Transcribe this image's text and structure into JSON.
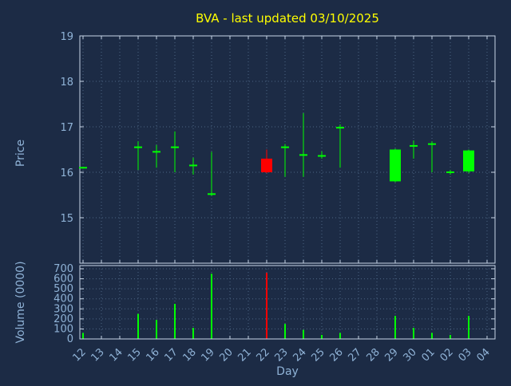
{
  "colors": {
    "background": "#1c2b45",
    "title": "#ffff00",
    "axis": "#8fb2d6",
    "grid": "#4d6584",
    "border": "#c7d6e8",
    "up": "#00ff00",
    "down": "#ff0000"
  },
  "chart_data": [
    {
      "type": "candlestick",
      "title": "BVA - last updated 03/10/2025",
      "ylabel": "Price",
      "ylim": [
        14,
        19
      ],
      "yticks": [
        15,
        16,
        17,
        18,
        19
      ],
      "categories": [
        "12",
        "13",
        "14",
        "15",
        "16",
        "17",
        "18",
        "19",
        "20",
        "21",
        "22",
        "23",
        "24",
        "25",
        "26",
        "27",
        "28",
        "29",
        "30",
        "01",
        "02",
        "03",
        "04"
      ],
      "candles": [
        {
          "day": "12",
          "open": 16.1,
          "high": 16.12,
          "low": 16.08,
          "close": 16.1,
          "color": "up"
        },
        {
          "day": "15",
          "open": 16.55,
          "high": 16.68,
          "low": 16.05,
          "close": 16.57,
          "color": "up"
        },
        {
          "day": "16",
          "open": 16.45,
          "high": 16.6,
          "low": 16.1,
          "close": 16.47,
          "color": "up"
        },
        {
          "day": "17",
          "open": 16.55,
          "high": 16.9,
          "low": 16.0,
          "close": 16.57,
          "color": "up"
        },
        {
          "day": "18",
          "open": 16.15,
          "high": 16.32,
          "low": 15.95,
          "close": 16.17,
          "color": "up"
        },
        {
          "day": "19",
          "open": 15.52,
          "high": 16.45,
          "low": 15.48,
          "close": 15.55,
          "color": "up"
        },
        {
          "day": "22",
          "open": 16.3,
          "high": 16.5,
          "low": 15.98,
          "close": 16.0,
          "color": "down"
        },
        {
          "day": "23",
          "open": 16.55,
          "high": 16.62,
          "low": 15.9,
          "close": 16.55,
          "color": "up"
        },
        {
          "day": "24",
          "open": 16.38,
          "high": 17.3,
          "low": 15.9,
          "close": 16.42,
          "color": "up"
        },
        {
          "day": "25",
          "open": 16.36,
          "high": 16.46,
          "low": 16.3,
          "close": 16.4,
          "color": "up"
        },
        {
          "day": "26",
          "open": 16.98,
          "high": 17.05,
          "low": 16.1,
          "close": 17.0,
          "color": "up"
        },
        {
          "day": "29",
          "open": 15.8,
          "high": 16.52,
          "low": 15.78,
          "close": 16.5,
          "color": "up"
        },
        {
          "day": "30",
          "open": 16.58,
          "high": 16.7,
          "low": 16.3,
          "close": 16.6,
          "color": "up"
        },
        {
          "day": "01",
          "open": 16.62,
          "high": 16.68,
          "low": 16.0,
          "close": 16.65,
          "color": "up"
        },
        {
          "day": "02",
          "open": 16.0,
          "high": 16.05,
          "low": 15.95,
          "close": 16.02,
          "color": "up"
        },
        {
          "day": "03",
          "open": 16.02,
          "high": 16.5,
          "low": 15.98,
          "close": 16.48,
          "color": "up"
        }
      ]
    },
    {
      "type": "bar",
      "ylabel": "Volume (0000)",
      "xlabel": "Day",
      "ylim": [
        0,
        700
      ],
      "yticks": [
        0,
        100,
        200,
        300,
        400,
        500,
        600,
        700
      ],
      "categories": [
        "12",
        "13",
        "14",
        "15",
        "16",
        "17",
        "18",
        "19",
        "20",
        "21",
        "22",
        "23",
        "24",
        "25",
        "26",
        "27",
        "28",
        "29",
        "30",
        "01",
        "02",
        "03",
        "04"
      ],
      "values": [
        {
          "day": "12",
          "value": 60,
          "color": "up"
        },
        {
          "day": "15",
          "value": 250,
          "color": "up"
        },
        {
          "day": "16",
          "value": 190,
          "color": "up"
        },
        {
          "day": "17",
          "value": 350,
          "color": "up"
        },
        {
          "day": "18",
          "value": 110,
          "color": "up"
        },
        {
          "day": "19",
          "value": 650,
          "color": "up"
        },
        {
          "day": "22",
          "value": 660,
          "color": "down"
        },
        {
          "day": "23",
          "value": 150,
          "color": "up"
        },
        {
          "day": "24",
          "value": 90,
          "color": "up"
        },
        {
          "day": "25",
          "value": 40,
          "color": "up"
        },
        {
          "day": "26",
          "value": 60,
          "color": "up"
        },
        {
          "day": "29",
          "value": 230,
          "color": "up"
        },
        {
          "day": "30",
          "value": 110,
          "color": "up"
        },
        {
          "day": "01",
          "value": 60,
          "color": "up"
        },
        {
          "day": "02",
          "value": 40,
          "color": "up"
        },
        {
          "day": "03",
          "value": 230,
          "color": "up"
        }
      ]
    }
  ]
}
